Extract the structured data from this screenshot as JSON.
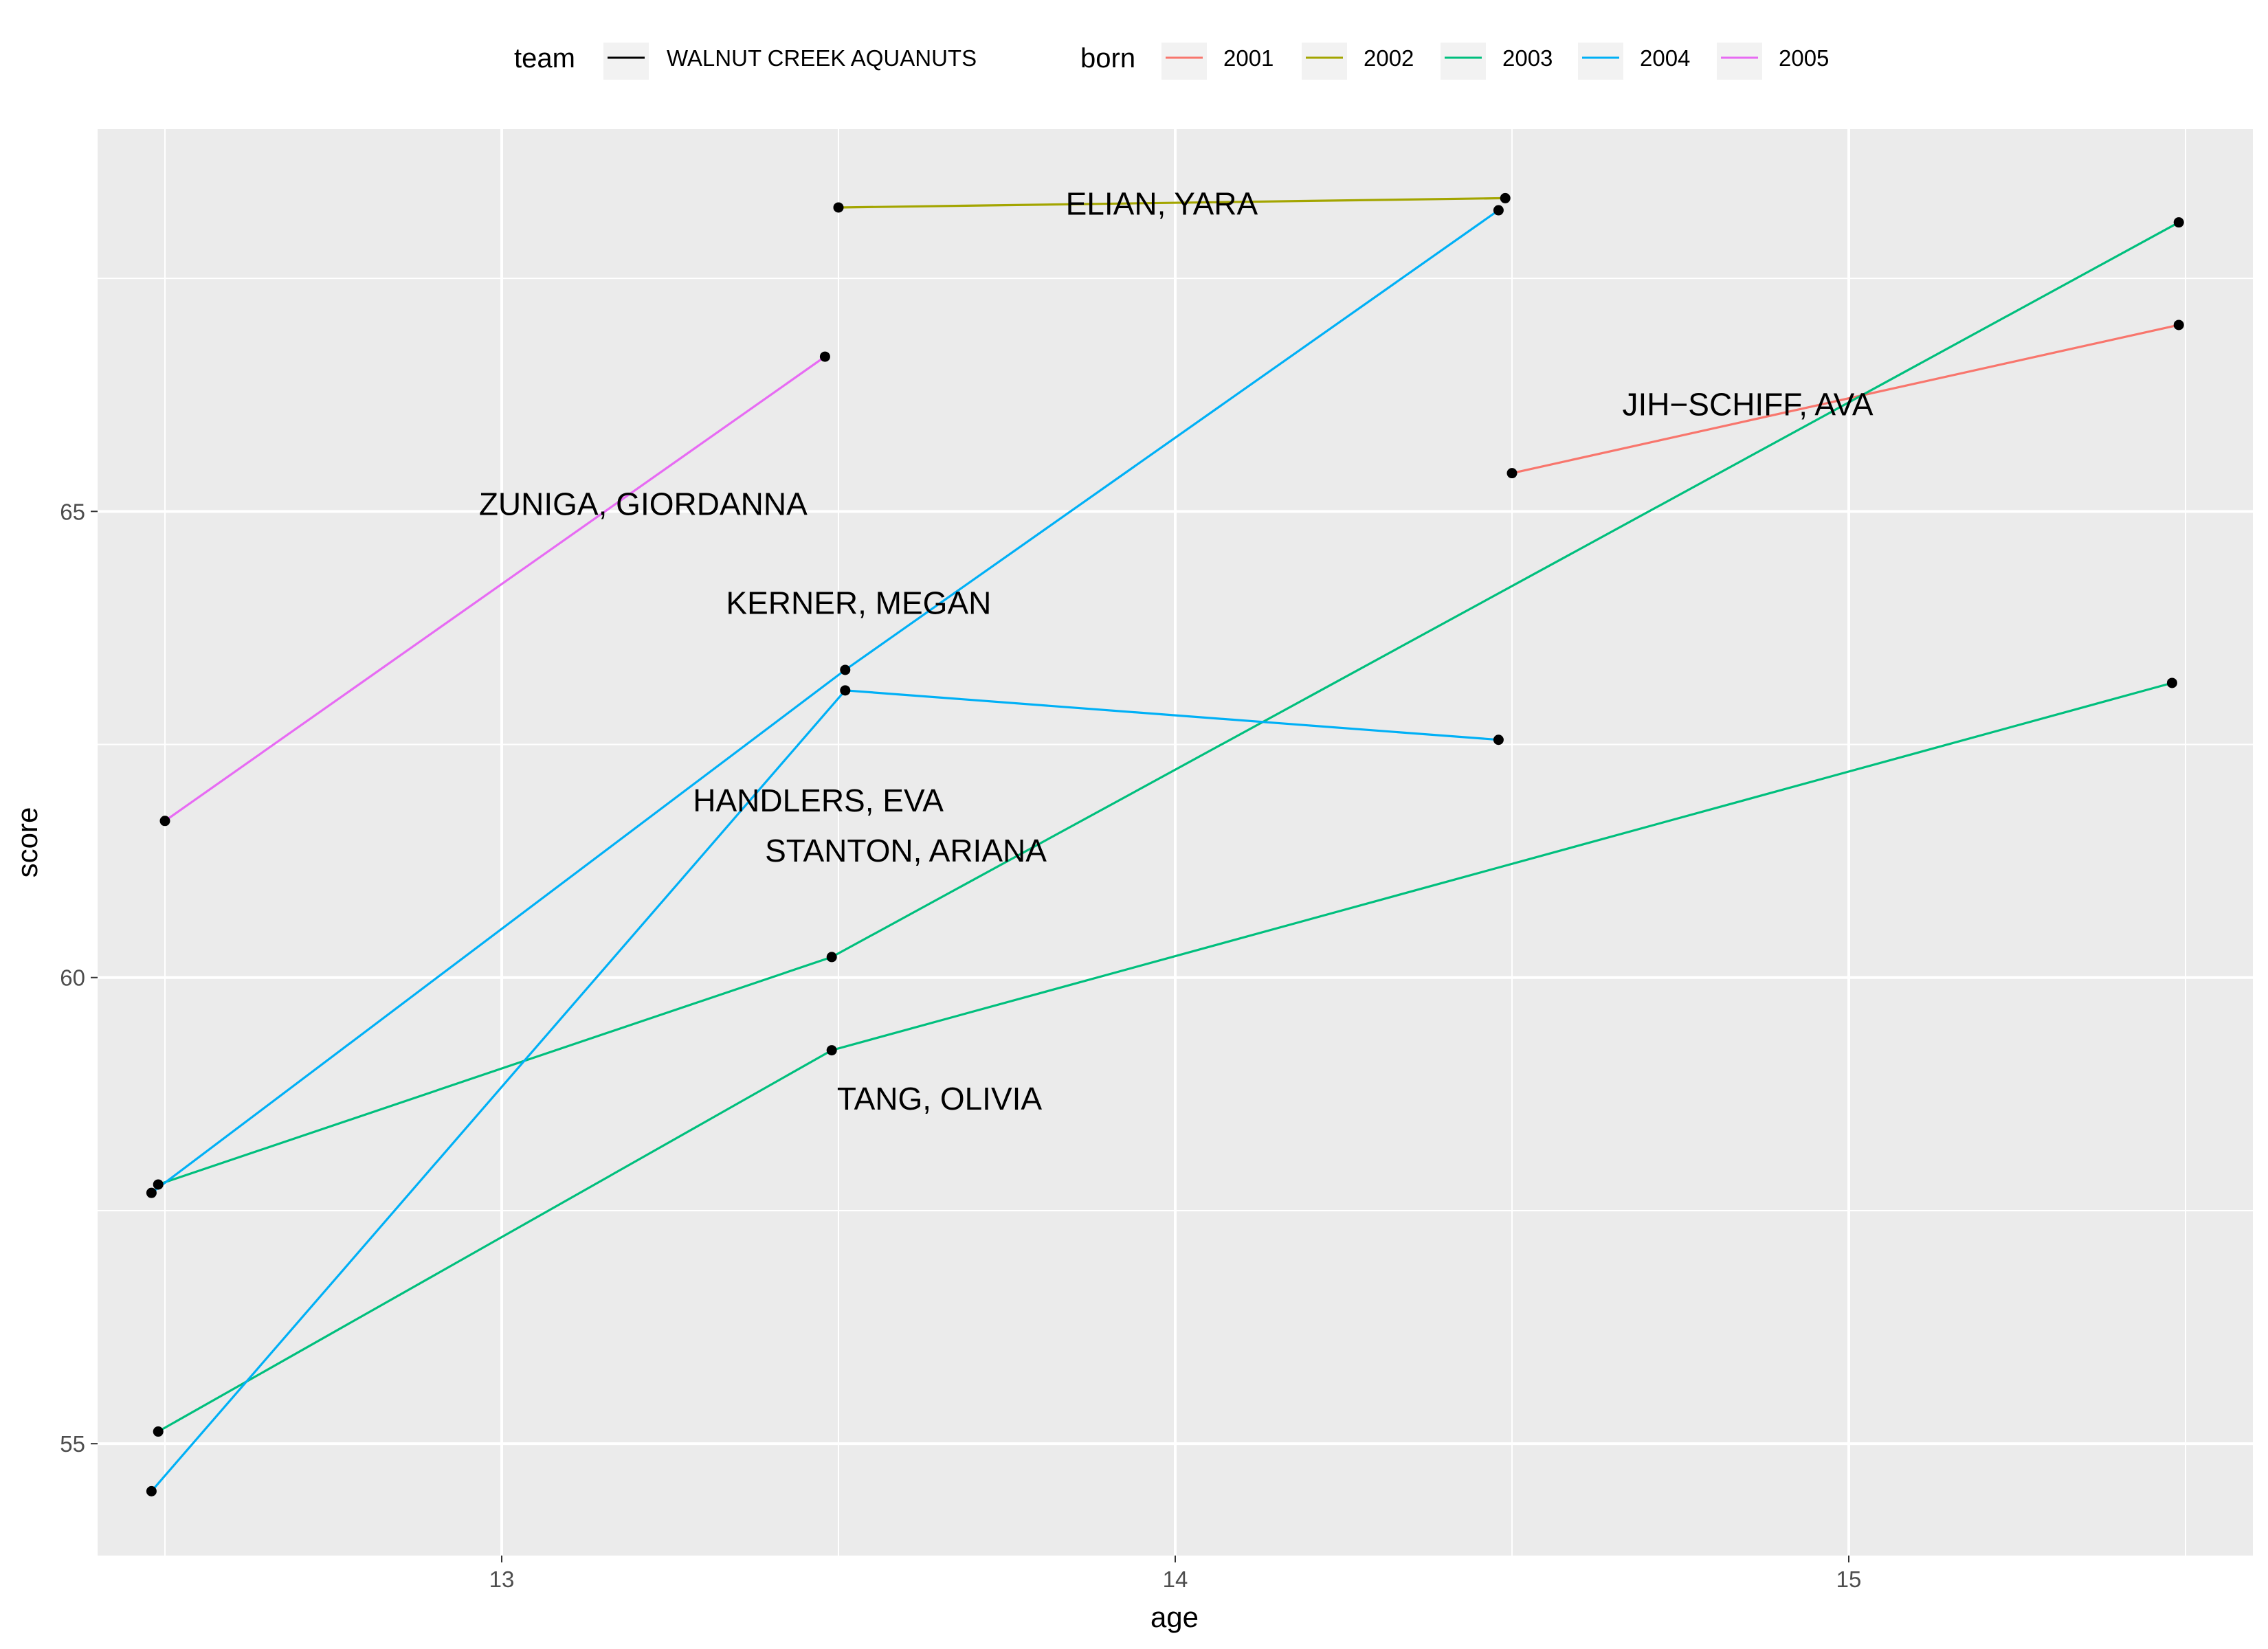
{
  "chart_data": {
    "type": "line",
    "xlabel": "age",
    "ylabel": "score",
    "xlim": [
      12.4,
      15.6
    ],
    "ylim": [
      53.8,
      69.1
    ],
    "xticks": [
      13,
      14,
      15
    ],
    "yticks": [
      55,
      60,
      65
    ],
    "grid": true,
    "legend_position": "top",
    "legend": {
      "team": {
        "title": "team",
        "entries": [
          {
            "label": "WALNUT CREEK AQUANUTS",
            "color": "#000000"
          }
        ]
      },
      "born": {
        "title": "born",
        "entries": [
          {
            "label": "2001",
            "color": "#F8766D"
          },
          {
            "label": "2002",
            "color": "#A3A500"
          },
          {
            "label": "2003",
            "color": "#00BF7D"
          },
          {
            "label": "2004",
            "color": "#00B0F6"
          },
          {
            "label": "2005",
            "color": "#E76BF3"
          }
        ]
      }
    },
    "series": [
      {
        "born": "2001",
        "color": "#F8766D",
        "points": [
          [
            14.5,
            65.41
          ],
          [
            15.49,
            67.0
          ]
        ]
      },
      {
        "born": "2002",
        "color": "#A3A500",
        "points": [
          [
            13.5,
            68.26
          ],
          [
            14.49,
            68.36
          ]
        ]
      },
      {
        "born": "2003",
        "color": "#00BF7D",
        "points": [
          [
            12.49,
            57.78
          ],
          [
            13.49,
            60.22
          ],
          [
            15.49,
            68.1
          ]
        ]
      },
      {
        "born": "2003",
        "color": "#00BF7D",
        "points": [
          [
            12.49,
            55.13
          ],
          [
            13.49,
            59.22
          ],
          [
            15.48,
            63.16
          ]
        ]
      },
      {
        "born": "2004",
        "color": "#00B0F6",
        "points": [
          [
            12.48,
            57.69
          ],
          [
            13.51,
            63.3
          ],
          [
            14.48,
            68.23
          ]
        ]
      },
      {
        "born": "2004",
        "color": "#00B0F6",
        "points": [
          [
            12.48,
            54.49
          ],
          [
            13.51,
            63.08
          ],
          [
            14.48,
            62.55
          ]
        ]
      },
      {
        "born": "2005",
        "color": "#E76BF3",
        "points": [
          [
            12.5,
            61.68
          ],
          [
            13.48,
            66.66
          ]
        ]
      }
    ],
    "annotations": [
      {
        "text": "ELIAN, YARA",
        "x": 13.98,
        "y": 68.3
      },
      {
        "text": "JIH−SCHIFF, AVA",
        "x": 14.85,
        "y": 66.15
      },
      {
        "text": "ZUNIGA, GIORDANNA",
        "x": 13.21,
        "y": 65.08
      },
      {
        "text": "KERNER, MEGAN",
        "x": 13.53,
        "y": 64.02
      },
      {
        "text": "HANDLERS, EVA",
        "x": 13.47,
        "y": 61.9
      },
      {
        "text": "STANTON, ARIANA",
        "x": 13.6,
        "y": 61.36
      },
      {
        "text": "TANG, OLIVIA",
        "x": 13.65,
        "y": 58.7
      }
    ]
  }
}
